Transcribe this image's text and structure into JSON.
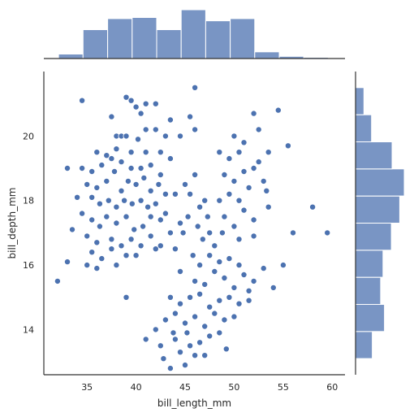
{
  "chart_data": {
    "type": "scatter",
    "title": "",
    "xlabel": "bill_length_mm",
    "ylabel": "bill_depth_mm",
    "xlim": [
      30.6,
      61.3
    ],
    "ylim": [
      12.6,
      22.0
    ],
    "xticks": [
      35,
      40,
      45,
      50,
      55,
      60
    ],
    "yticks": [
      14,
      16,
      18,
      20
    ],
    "grid": false,
    "point_color": "#4c72b0",
    "hist_color": "#4c72b0",
    "points": [
      [
        34.5,
        21.1
      ],
      [
        39.0,
        21.2
      ],
      [
        39.5,
        21.1
      ],
      [
        41.0,
        21.0
      ],
      [
        42.0,
        21.0
      ],
      [
        46.0,
        21.5
      ],
      [
        37.5,
        20.6
      ],
      [
        40.0,
        20.9
      ],
      [
        40.5,
        20.7
      ],
      [
        43.5,
        20.5
      ],
      [
        45.5,
        20.6
      ],
      [
        52.0,
        20.7
      ],
      [
        54.5,
        20.8
      ],
      [
        38.0,
        20.0
      ],
      [
        38.5,
        20.0
      ],
      [
        39.0,
        20.0
      ],
      [
        40.2,
        19.9
      ],
      [
        41.0,
        20.2
      ],
      [
        42.0,
        20.2
      ],
      [
        43.0,
        20.0
      ],
      [
        44.5,
        20.0
      ],
      [
        46.0,
        20.2
      ],
      [
        50.0,
        20.0
      ],
      [
        52.5,
        20.2
      ],
      [
        38.0,
        19.6
      ],
      [
        39.5,
        19.5
      ],
      [
        41.0,
        19.5
      ],
      [
        36.0,
        19.5
      ],
      [
        37.0,
        19.4
      ],
      [
        42.5,
        19.5
      ],
      [
        43.5,
        19.3
      ],
      [
        34.5,
        19.0
      ],
      [
        35.5,
        18.9
      ],
      [
        36.5,
        19.1
      ],
      [
        37.5,
        19.3
      ],
      [
        38.5,
        19.2
      ],
      [
        39.5,
        19.0
      ],
      [
        40.5,
        19.0
      ],
      [
        41.5,
        19.1
      ],
      [
        42.5,
        18.8
      ],
      [
        33.0,
        19.0
      ],
      [
        35.0,
        18.5
      ],
      [
        36.0,
        18.4
      ],
      [
        37.0,
        18.6
      ],
      [
        37.8,
        18.9
      ],
      [
        38.5,
        18.3
      ],
      [
        39.2,
        18.6
      ],
      [
        40.0,
        18.5
      ],
      [
        40.8,
        18.7
      ],
      [
        41.5,
        18.3
      ],
      [
        42.3,
        18.5
      ],
      [
        43.0,
        18.2
      ],
      [
        34.0,
        18.1
      ],
      [
        35.5,
        18.1
      ],
      [
        36.3,
        17.9
      ],
      [
        37.2,
        18.0
      ],
      [
        38.0,
        17.8
      ],
      [
        38.8,
        18.0
      ],
      [
        39.6,
        17.9
      ],
      [
        40.5,
        18.0
      ],
      [
        41.2,
        17.8
      ],
      [
        42.0,
        17.9
      ],
      [
        43.0,
        17.6
      ],
      [
        44.0,
        18.2
      ],
      [
        34.5,
        17.6
      ],
      [
        35.5,
        17.4
      ],
      [
        36.3,
        17.2
      ],
      [
        37.0,
        17.5
      ],
      [
        38.0,
        17.3
      ],
      [
        39.0,
        17.5
      ],
      [
        39.8,
        17.1
      ],
      [
        40.7,
        17.2
      ],
      [
        41.5,
        17.5
      ],
      [
        42.5,
        17.4
      ],
      [
        43.5,
        17.0
      ],
      [
        44.5,
        17.3
      ],
      [
        33.5,
        17.1
      ],
      [
        35.0,
        16.9
      ],
      [
        36.0,
        16.7
      ],
      [
        37.5,
        16.8
      ],
      [
        38.5,
        16.6
      ],
      [
        39.5,
        16.8
      ],
      [
        40.5,
        16.6
      ],
      [
        41.5,
        16.9
      ],
      [
        42.5,
        16.6
      ],
      [
        35.5,
        16.4
      ],
      [
        36.5,
        16.2
      ],
      [
        37.5,
        16.5
      ],
      [
        39.0,
        16.3
      ],
      [
        40.0,
        16.3
      ],
      [
        42.0,
        16.5
      ],
      [
        44.0,
        16.5
      ],
      [
        33.0,
        16.1
      ],
      [
        35.0,
        16.0
      ],
      [
        36.0,
        15.9
      ],
      [
        38.0,
        16.0
      ],
      [
        32.0,
        15.5
      ],
      [
        45.0,
        18.5
      ],
      [
        45.5,
        18.2
      ],
      [
        46.0,
        18.8
      ],
      [
        46.5,
        17.8
      ],
      [
        47.0,
        18.0
      ],
      [
        45.3,
        17.5
      ],
      [
        44.8,
        17.0
      ],
      [
        46.3,
        17.2
      ],
      [
        47.3,
        17.5
      ],
      [
        46.8,
        16.8
      ],
      [
        45.8,
        16.3
      ],
      [
        46.5,
        16.0
      ],
      [
        44.5,
        15.8
      ],
      [
        48.5,
        19.5
      ],
      [
        49.5,
        19.3
      ],
      [
        50.5,
        19.5
      ],
      [
        51.0,
        19.8
      ],
      [
        49.0,
        18.8
      ],
      [
        50.0,
        18.6
      ],
      [
        51.0,
        18.9
      ],
      [
        52.0,
        19.0
      ],
      [
        49.5,
        18.2
      ],
      [
        50.5,
        18.0
      ],
      [
        51.5,
        18.4
      ],
      [
        48.5,
        18.0
      ],
      [
        49.0,
        17.5
      ],
      [
        50.0,
        17.2
      ],
      [
        51.0,
        17.7
      ],
      [
        52.0,
        17.4
      ],
      [
        48.8,
        17.0
      ],
      [
        50.5,
        16.8
      ],
      [
        52.0,
        16.9
      ],
      [
        53.5,
        17.8
      ],
      [
        55.5,
        19.7
      ],
      [
        58.0,
        17.8
      ],
      [
        56.0,
        17.0
      ],
      [
        59.5,
        17.0
      ],
      [
        52.5,
        19.2
      ],
      [
        53.0,
        18.6
      ],
      [
        53.5,
        19.5
      ],
      [
        53.3,
        18.3
      ],
      [
        47.5,
        17.0
      ],
      [
        48.0,
        16.6
      ],
      [
        46.0,
        15.5
      ],
      [
        47.0,
        15.4
      ],
      [
        48.0,
        15.8
      ],
      [
        49.0,
        15.6
      ],
      [
        50.0,
        15.3
      ],
      [
        51.0,
        15.7
      ],
      [
        47.5,
        16.3
      ],
      [
        48.5,
        16.1
      ],
      [
        49.5,
        16.2
      ],
      [
        50.5,
        16.0
      ],
      [
        51.5,
        15.2
      ],
      [
        52.0,
        15.5
      ],
      [
        53.0,
        15.9
      ],
      [
        55.0,
        16.0
      ],
      [
        54.0,
        15.3
      ],
      [
        43.5,
        15.0
      ],
      [
        44.5,
        14.8
      ],
      [
        45.5,
        15.0
      ],
      [
        46.5,
        15.1
      ],
      [
        47.5,
        14.7
      ],
      [
        48.5,
        14.9
      ],
      [
        49.5,
        15.0
      ],
      [
        50.5,
        14.8
      ],
      [
        51.5,
        14.9
      ],
      [
        43.0,
        14.3
      ],
      [
        44.0,
        14.5
      ],
      [
        45.0,
        14.2
      ],
      [
        46.0,
        14.4
      ],
      [
        47.0,
        14.1
      ],
      [
        48.0,
        14.5
      ],
      [
        49.0,
        14.3
      ],
      [
        50.0,
        14.4
      ],
      [
        42.0,
        14.0
      ],
      [
        43.8,
        13.9
      ],
      [
        45.2,
        13.9
      ],
      [
        44.0,
        13.7
      ],
      [
        45.5,
        13.5
      ],
      [
        46.5,
        13.6
      ],
      [
        47.5,
        13.8
      ],
      [
        48.5,
        13.9
      ],
      [
        49.2,
        13.4
      ],
      [
        44.5,
        13.3
      ],
      [
        46.0,
        13.2
      ],
      [
        41.0,
        13.7
      ],
      [
        42.5,
        13.5
      ],
      [
        42.8,
        13.1
      ],
      [
        47.0,
        13.2
      ],
      [
        45.0,
        12.9
      ],
      [
        43.5,
        12.8
      ],
      [
        39.0,
        15.0
      ]
    ],
    "x_marginal": {
      "bin_edges": [
        32.1,
        34.6,
        37.1,
        39.6,
        42.1,
        44.6,
        47.1,
        49.6,
        52.1,
        54.6,
        57.1,
        59.6
      ],
      "counts": [
        4,
        26,
        36,
        37,
        26,
        44,
        34,
        36,
        6,
        2,
        1
      ]
    },
    "y_marginal": {
      "bin_edges": [
        13.1,
        13.94,
        14.78,
        15.62,
        16.46,
        17.3,
        18.14,
        18.98,
        19.82,
        20.66,
        21.5
      ],
      "counts": [
        22,
        38,
        33,
        36,
        47,
        58,
        64,
        48,
        21,
        11
      ]
    }
  }
}
